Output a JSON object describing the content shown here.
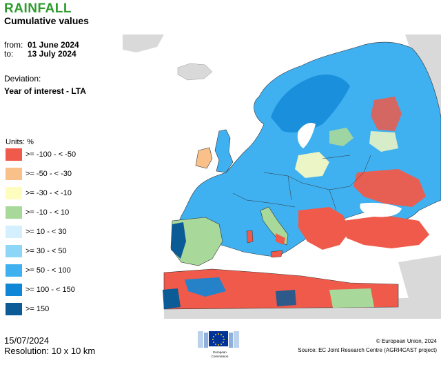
{
  "title": "RAINFALL",
  "subtitle": "Cumulative values",
  "period": {
    "from_label": "from:",
    "from_value": "01 June 2024",
    "to_label": "to:",
    "to_value": "13 July 2024"
  },
  "deviation": {
    "label": "Deviation:",
    "value": "Year of interest - LTA"
  },
  "legend": {
    "units": "Units: %",
    "items": [
      {
        "label": ">= -100 - < -50",
        "color": "#f05a4a"
      },
      {
        "label": ">= -50 - < -30",
        "color": "#f9c08a"
      },
      {
        "label": ">= -30 - < -10",
        "color": "#fefdc0"
      },
      {
        "label": ">= -10 - < 10",
        "color": "#a9d99a"
      },
      {
        "label": ">= 10 - < 30",
        "color": "#d4effd"
      },
      {
        "label": ">= 30 - < 50",
        "color": "#8ed6f7"
      },
      {
        "label": ">= 50 - < 100",
        "color": "#3fb0f0"
      },
      {
        "label": ">= 100 - < 150",
        "color": "#0f86d6"
      },
      {
        "label": ">= 150",
        "color": "#0b5b97"
      }
    ]
  },
  "footer": {
    "date": "15/07/2024",
    "resolution": "Resolution: 10 x 10 km",
    "copyright": "© European Union, 2024",
    "source": "Source: EC Joint Research Centre (AGRI4CAST project)",
    "logo_text_1": "European",
    "logo_text_2": "Commission"
  },
  "map": {
    "land_color": "#d9d9d9",
    "sea_color": "#ffffff",
    "border_color": "#333333"
  }
}
